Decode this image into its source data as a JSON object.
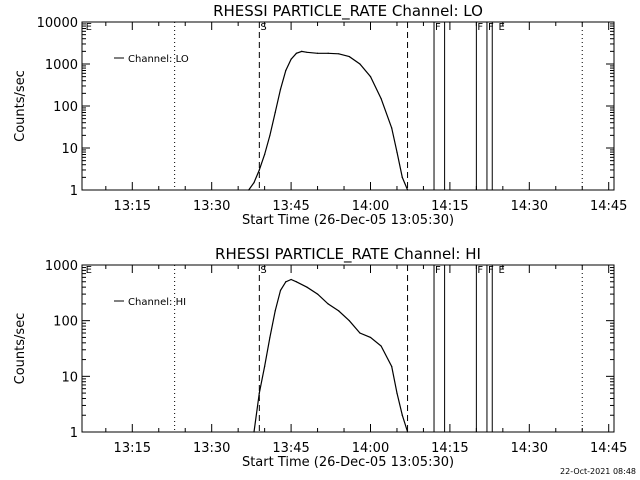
{
  "footer": {
    "timestamp": "22-Oct-2021 08:48"
  },
  "chart_data": [
    {
      "type": "line",
      "title": "RHESSI PARTICLE_RATE Channel: LO",
      "xlabel": "Start Time (26-Dec-05 13:05:30)",
      "ylabel": "Counts/sec",
      "y_scale": "log",
      "ylim": [
        1,
        10000
      ],
      "xlim": [
        "13:05:30",
        "14:46"
      ],
      "x_ticks": [
        "13:15",
        "13:30",
        "13:45",
        "14:00",
        "14:15",
        "14:30",
        "14:45"
      ],
      "y_ticks": [
        "1",
        "10",
        "100",
        "1000",
        "10000"
      ],
      "grid": false,
      "legend": {
        "position": "top-left",
        "entries": [
          "Channel: LO"
        ]
      },
      "series": [
        {
          "name": "Channel: LO",
          "x": [
            "13:37",
            "13:38",
            "13:39",
            "13:40",
            "13:41",
            "13:42",
            "13:43",
            "13:44",
            "13:45",
            "13:46",
            "13:47",
            "13:48",
            "13:50",
            "13:52",
            "13:54",
            "13:56",
            "13:58",
            "14:00",
            "14:02",
            "14:04",
            "14:05",
            "14:06",
            "14:07"
          ],
          "y": [
            1,
            1.5,
            3,
            7,
            20,
            70,
            250,
            700,
            1300,
            1800,
            2000,
            1900,
            1800,
            1800,
            1750,
            1500,
            1000,
            500,
            150,
            30,
            8,
            2,
            1
          ]
        }
      ],
      "annotations": {
        "dotted_lines": [
          "13:23",
          "14:40"
        ],
        "dashed_lines": [
          "13:39",
          "14:07"
        ],
        "solid_lines": [
          "14:12",
          "14:14",
          "14:20",
          "14:22",
          "14:23"
        ],
        "labels": [
          {
            "text": "E",
            "x": "13:06"
          },
          {
            "text": "S",
            "x": "13:39"
          },
          {
            "text": "F",
            "x": "14:12"
          },
          {
            "text": "F",
            "x": "14:20"
          },
          {
            "text": "F",
            "x": "14:22"
          },
          {
            "text": "E",
            "x": "14:24"
          }
        ]
      }
    },
    {
      "type": "line",
      "title": "RHESSI PARTICLE_RATE Channel: HI",
      "xlabel": "Start Time (26-Dec-05 13:05:30)",
      "ylabel": "Counts/sec",
      "y_scale": "log",
      "ylim": [
        1,
        1000
      ],
      "xlim": [
        "13:05:30",
        "14:46"
      ],
      "x_ticks": [
        "13:15",
        "13:30",
        "13:45",
        "14:00",
        "14:15",
        "14:30",
        "14:45"
      ],
      "y_ticks": [
        "1",
        "10",
        "100",
        "1000"
      ],
      "grid": false,
      "legend": {
        "position": "top-left",
        "entries": [
          "Channel: HI"
        ]
      },
      "series": [
        {
          "name": "Channel: HI",
          "x": [
            "13:38",
            "13:39",
            "13:40",
            "13:41",
            "13:42",
            "13:43",
            "13:44",
            "13:45",
            "13:46",
            "13:48",
            "13:50",
            "13:52",
            "13:54",
            "13:56",
            "13:58",
            "14:00",
            "14:02",
            "14:04",
            "14:05",
            "14:06",
            "14:07"
          ],
          "y": [
            1,
            5,
            15,
            50,
            150,
            350,
            500,
            550,
            500,
            400,
            300,
            200,
            150,
            100,
            60,
            50,
            35,
            15,
            5,
            2,
            1
          ]
        }
      ],
      "annotations": {
        "dotted_lines": [
          "13:23",
          "14:40"
        ],
        "dashed_lines": [
          "13:39",
          "14:07"
        ],
        "solid_lines": [
          "14:12",
          "14:14",
          "14:20",
          "14:22",
          "14:23"
        ],
        "labels": [
          {
            "text": "E",
            "x": "13:06"
          },
          {
            "text": "S",
            "x": "13:39"
          },
          {
            "text": "F",
            "x": "14:12"
          },
          {
            "text": "F",
            "x": "14:20"
          },
          {
            "text": "F",
            "x": "14:22"
          },
          {
            "text": "E",
            "x": "14:24"
          }
        ]
      }
    }
  ]
}
